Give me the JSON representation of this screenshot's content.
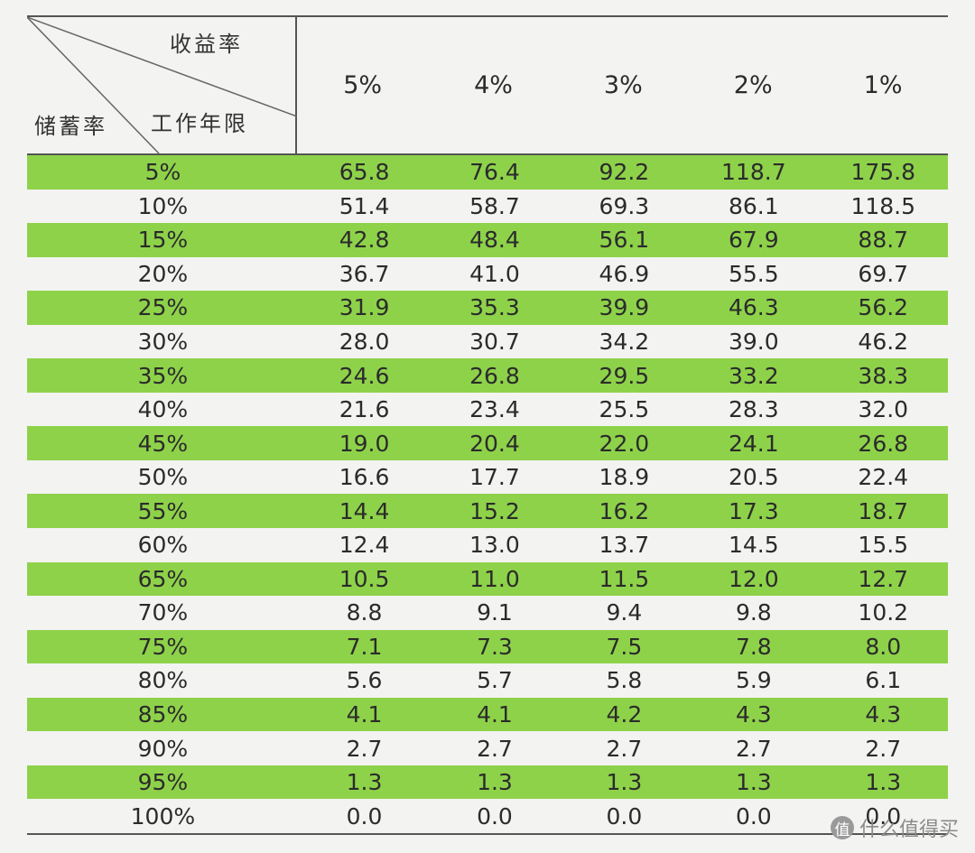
{
  "header": {
    "corner_top": "收益率",
    "corner_middle": "工作年限",
    "corner_left": "储蓄率",
    "columns": [
      "5%",
      "4%",
      "3%",
      "2%",
      "1%"
    ]
  },
  "rows": [
    {
      "rate": "5%",
      "values": [
        "65.8",
        "76.4",
        "92.2",
        "118.7",
        "175.8"
      ]
    },
    {
      "rate": "10%",
      "values": [
        "51.4",
        "58.7",
        "69.3",
        "86.1",
        "118.5"
      ]
    },
    {
      "rate": "15%",
      "values": [
        "42.8",
        "48.4",
        "56.1",
        "67.9",
        "88.7"
      ]
    },
    {
      "rate": "20%",
      "values": [
        "36.7",
        "41.0",
        "46.9",
        "55.5",
        "69.7"
      ]
    },
    {
      "rate": "25%",
      "values": [
        "31.9",
        "35.3",
        "39.9",
        "46.3",
        "56.2"
      ]
    },
    {
      "rate": "30%",
      "values": [
        "28.0",
        "30.7",
        "34.2",
        "39.0",
        "46.2"
      ]
    },
    {
      "rate": "35%",
      "values": [
        "24.6",
        "26.8",
        "29.5",
        "33.2",
        "38.3"
      ]
    },
    {
      "rate": "40%",
      "values": [
        "21.6",
        "23.4",
        "25.5",
        "28.3",
        "32.0"
      ]
    },
    {
      "rate": "45%",
      "values": [
        "19.0",
        "20.4",
        "22.0",
        "24.1",
        "26.8"
      ]
    },
    {
      "rate": "50%",
      "values": [
        "16.6",
        "17.7",
        "18.9",
        "20.5",
        "22.4"
      ]
    },
    {
      "rate": "55%",
      "values": [
        "14.4",
        "15.2",
        "16.2",
        "17.3",
        "18.7"
      ]
    },
    {
      "rate": "60%",
      "values": [
        "12.4",
        "13.0",
        "13.7",
        "14.5",
        "15.5"
      ]
    },
    {
      "rate": "65%",
      "values": [
        "10.5",
        "11.0",
        "11.5",
        "12.0",
        "12.7"
      ]
    },
    {
      "rate": "70%",
      "values": [
        "8.8",
        "9.1",
        "9.4",
        "9.8",
        "10.2"
      ]
    },
    {
      "rate": "75%",
      "values": [
        "7.1",
        "7.3",
        "7.5",
        "7.8",
        "8.0"
      ]
    },
    {
      "rate": "80%",
      "values": [
        "5.6",
        "5.7",
        "5.8",
        "5.9",
        "6.1"
      ]
    },
    {
      "rate": "85%",
      "values": [
        "4.1",
        "4.1",
        "4.2",
        "4.3",
        "4.3"
      ]
    },
    {
      "rate": "90%",
      "values": [
        "2.7",
        "2.7",
        "2.7",
        "2.7",
        "2.7"
      ]
    },
    {
      "rate": "95%",
      "values": [
        "1.3",
        "1.3",
        "1.3",
        "1.3",
        "1.3"
      ]
    },
    {
      "rate": "100%",
      "values": [
        "0.0",
        "0.0",
        "0.0",
        "0.0",
        "0.0"
      ]
    }
  ],
  "colors": {
    "stripe": "#8ed24a",
    "background": "#f3f3f2"
  },
  "watermark": {
    "badge": "值",
    "text": "什么值得买"
  }
}
